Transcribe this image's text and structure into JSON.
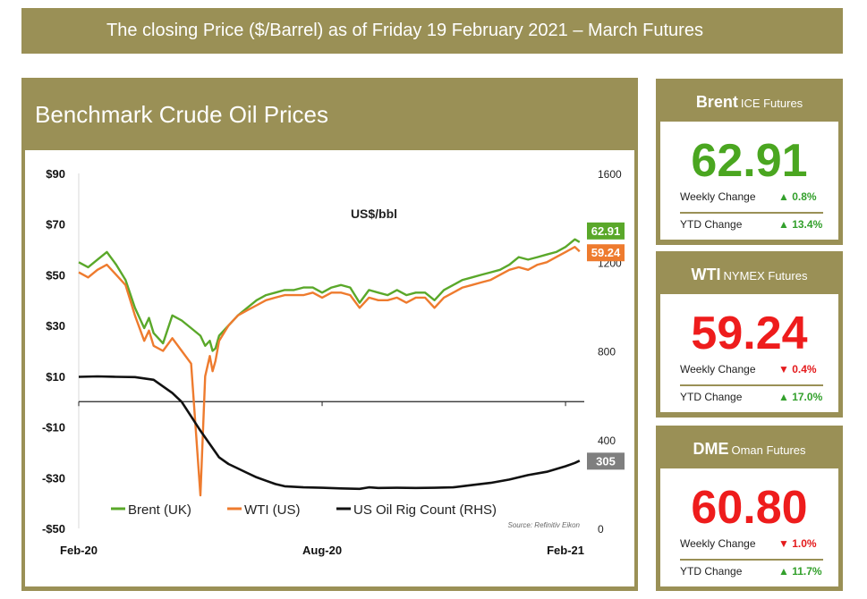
{
  "banner": {
    "text": "The closing Price ($/Barrel) as of Friday 19 February 2021 – March Futures"
  },
  "main": {
    "title": "Benchmark Crude Oil Prices",
    "unit_label": "US$/bbl",
    "source": "Source: Refinitiv Eikon"
  },
  "colors": {
    "brent": "#5aa82a",
    "wti": "#ee7b2e",
    "rigs": "#111111",
    "frame": "#9a9056",
    "up": "#33a02c",
    "down": "#e41a1c",
    "rig_badge": "#7f7f7f"
  },
  "cards": [
    {
      "name": "Brent",
      "sub": "ICE Futures",
      "price": "62.91",
      "price_color": "#4aa620",
      "weekly_label": "Weekly Change",
      "weekly_dir": "up",
      "weekly_value": "0.8%",
      "ytd_label": "YTD Change",
      "ytd_dir": "up",
      "ytd_value": "13.4%"
    },
    {
      "name": "WTI",
      "sub": "NYMEX Futures",
      "price": "59.24",
      "price_color": "#ee1c1c",
      "weekly_label": "Weekly Change",
      "weekly_dir": "down",
      "weekly_value": "0.4%",
      "ytd_label": "YTD Change",
      "ytd_dir": "up",
      "ytd_value": "17.0%"
    },
    {
      "name": "DME",
      "sub": "Oman Futures",
      "price": "60.80",
      "price_color": "#ee1c1c",
      "weekly_label": "Weekly Change",
      "weekly_dir": "down",
      "weekly_value": "1.0%",
      "ytd_label": "YTD Change",
      "ytd_dir": "up",
      "ytd_value": "11.7%"
    }
  ],
  "chart_data": {
    "type": "line",
    "ylabel_left_ticks": [
      "$90",
      "$70",
      "$50",
      "$30",
      "$10",
      "-$10",
      "-$30",
      "-$50"
    ],
    "ylabel_right_ticks": [
      "1600",
      "1200",
      "800",
      "400",
      "0"
    ],
    "ylim_left": [
      -50,
      90
    ],
    "ylim_right": [
      0,
      1600
    ],
    "x_ticks": [
      {
        "label": "Feb-20",
        "x": 0
      },
      {
        "label": "Aug-20",
        "x": 26
      },
      {
        "label": "Feb-21",
        "x": 52
      }
    ],
    "x_range": [
      0,
      54
    ],
    "legend": [
      "Brent (UK)",
      "WTI (US)",
      "US Oil Rig Count (RHS)"
    ],
    "end_labels": {
      "brent": "62.91",
      "wti": "59.24",
      "rigs": "305"
    },
    "series": [
      {
        "key": "brent",
        "name": "Brent (UK)",
        "axis": "left",
        "x": [
          0,
          1,
          2,
          3,
          4,
          5,
          6,
          7,
          7.5,
          8,
          9,
          10,
          11,
          12,
          13,
          13.5,
          14,
          14.3,
          14.6,
          15,
          16,
          17,
          18,
          19,
          20,
          21,
          22,
          23,
          24,
          25,
          26,
          27,
          28,
          29,
          30,
          31,
          32,
          33,
          34,
          35,
          36,
          37,
          38,
          39,
          40,
          41,
          42,
          43,
          44,
          45,
          46,
          47,
          48,
          49,
          50,
          51,
          52,
          53,
          53.5
        ],
        "values": [
          55,
          53,
          56,
          59,
          54,
          48,
          37,
          29,
          33,
          27,
          23,
          34,
          32,
          29,
          26,
          22,
          24,
          20,
          21,
          26,
          30,
          34,
          37,
          40,
          42,
          43,
          44,
          44,
          45,
          45,
          43,
          45,
          46,
          45,
          39,
          44,
          43,
          42,
          44,
          42,
          43,
          43,
          40,
          44,
          46,
          48,
          49,
          50,
          51,
          52,
          54,
          57,
          56,
          57,
          58,
          59,
          61,
          64,
          62.91
        ]
      },
      {
        "key": "wti",
        "name": "WTI (US)",
        "axis": "left",
        "x": [
          0,
          1,
          2,
          3,
          4,
          5,
          6,
          7,
          7.5,
          8,
          9,
          10,
          11,
          12,
          13,
          13.5,
          14,
          14.3,
          14.6,
          15,
          16,
          17,
          18,
          19,
          20,
          21,
          22,
          23,
          24,
          25,
          26,
          27,
          28,
          29,
          30,
          31,
          32,
          33,
          34,
          35,
          36,
          37,
          38,
          39,
          40,
          41,
          42,
          43,
          44,
          45,
          46,
          47,
          48,
          49,
          50,
          51,
          52,
          53,
          53.5
        ],
        "values": [
          51,
          49,
          52,
          54,
          50,
          46,
          34,
          24,
          28,
          22,
          20,
          25,
          20,
          15,
          -37,
          10,
          18,
          12,
          16,
          24,
          30,
          34,
          36,
          38,
          40,
          41,
          42,
          42,
          42,
          43,
          41,
          43,
          43,
          42,
          37,
          41,
          40,
          40,
          41,
          39,
          41,
          41,
          37,
          41,
          43,
          45,
          46,
          47,
          48,
          50,
          52,
          53,
          52,
          54,
          55,
          57,
          59,
          61,
          59.24
        ]
      },
      {
        "key": "rigs",
        "name": "US Oil Rig Count (RHS)",
        "axis": "right",
        "x": [
          0,
          2,
          4,
          6,
          8,
          10,
          11,
          12,
          13,
          14,
          15,
          16,
          17,
          18,
          19,
          20,
          21,
          22,
          24,
          26,
          28,
          30,
          31,
          32,
          34,
          36,
          38,
          40,
          42,
          44,
          46,
          48,
          50,
          52,
          53,
          53.5
        ],
        "values": [
          683,
          685,
          683,
          682,
          670,
          610,
          570,
          505,
          440,
          380,
          320,
          290,
          270,
          250,
          230,
          215,
          200,
          190,
          185,
          183,
          180,
          178,
          185,
          182,
          183,
          182,
          183,
          185,
          195,
          205,
          220,
          240,
          255,
          280,
          295,
          305
        ]
      }
    ]
  }
}
